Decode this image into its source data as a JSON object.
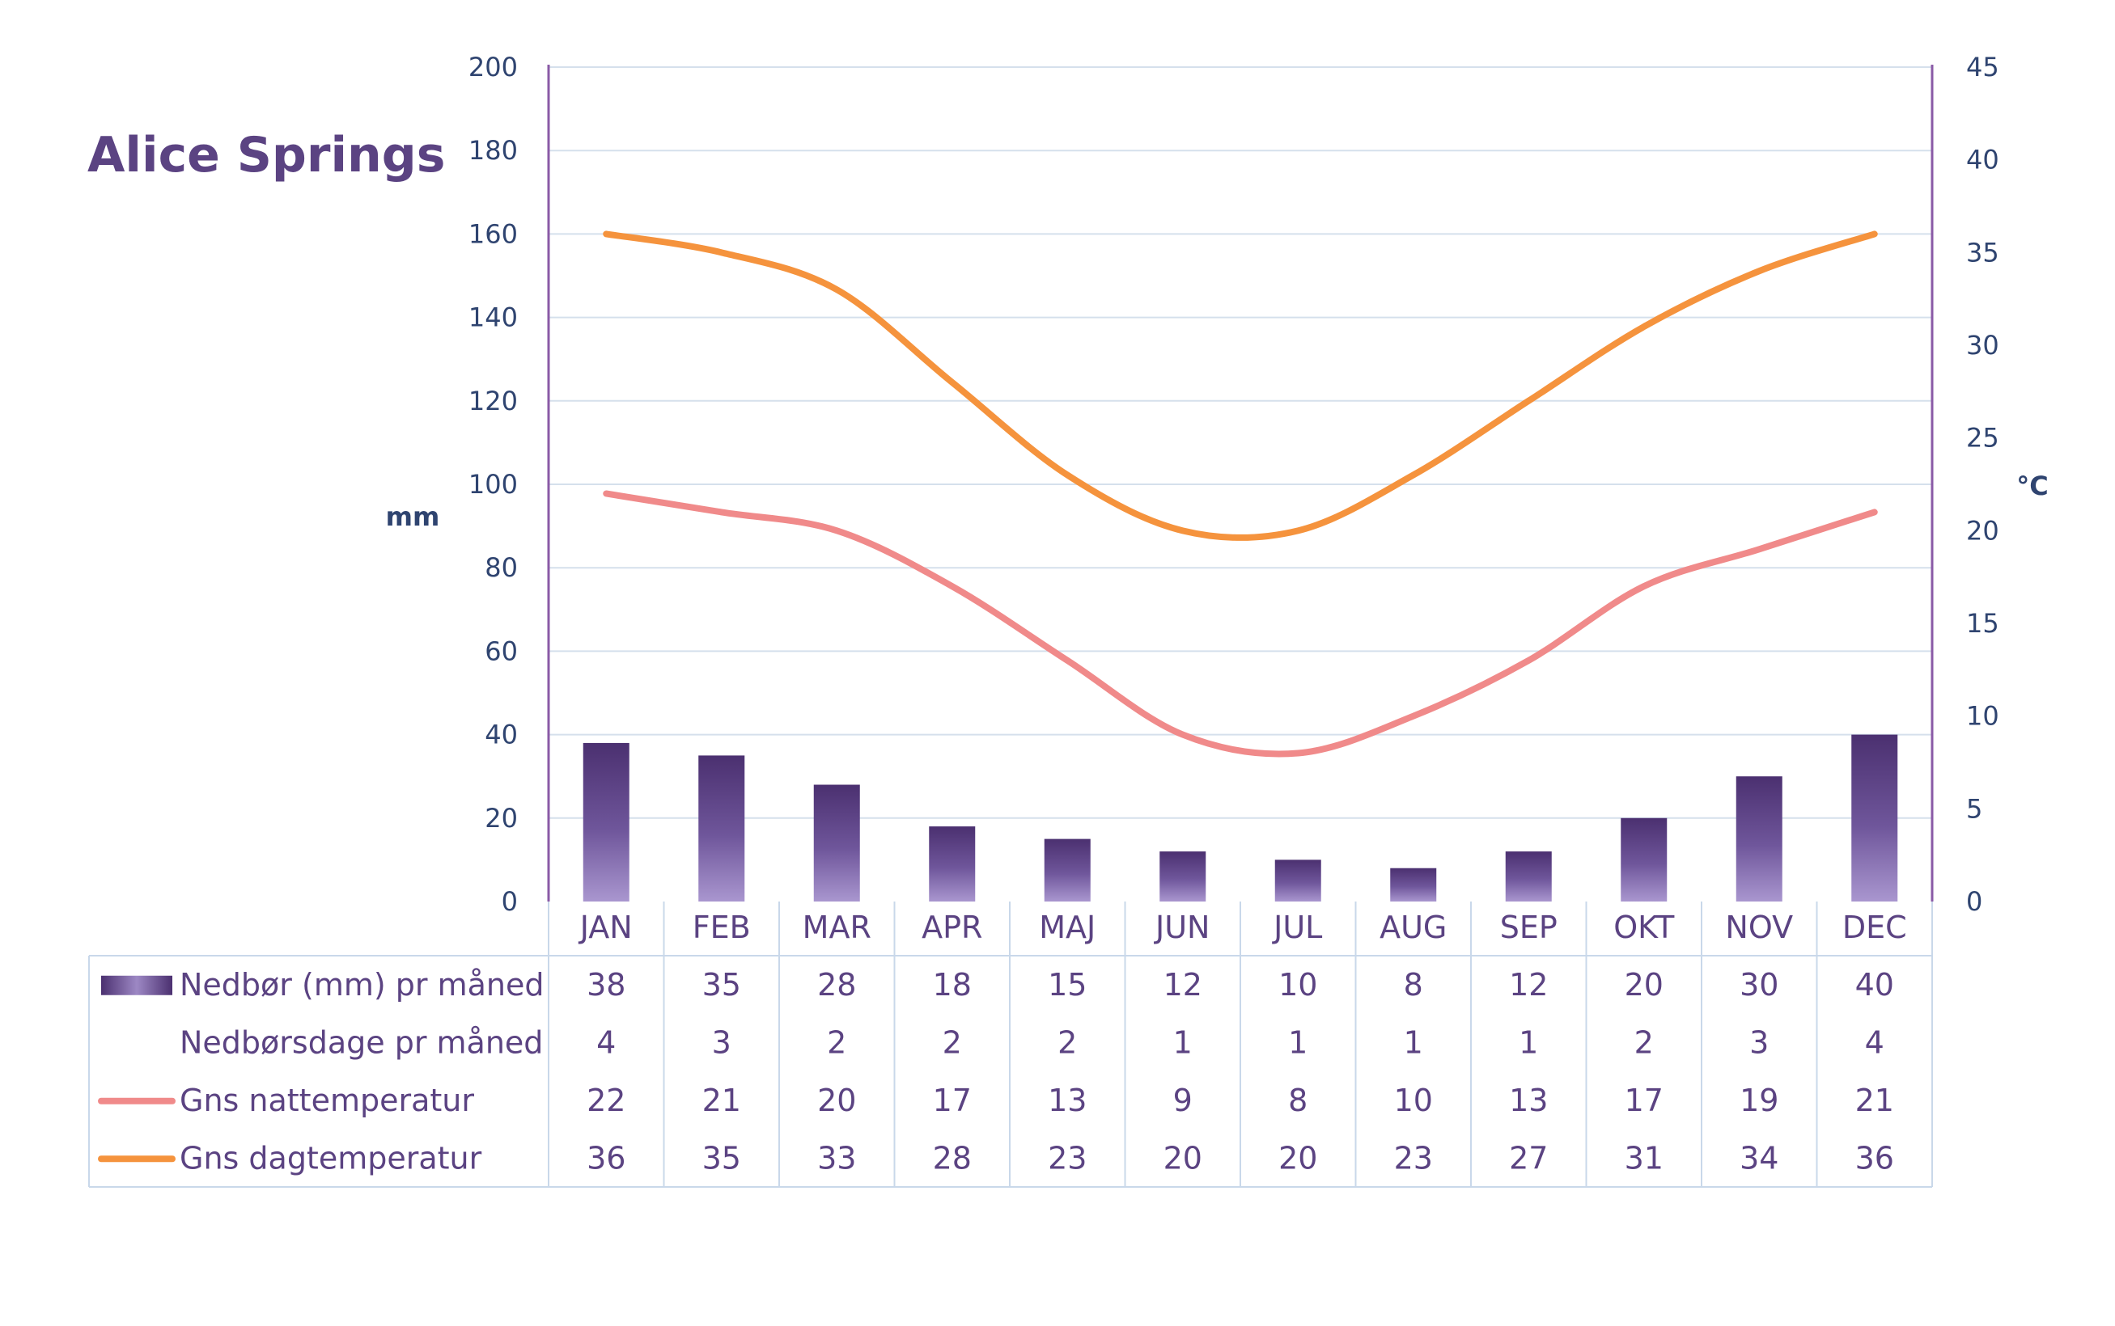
{
  "chart_data": {
    "type": "bar",
    "title": "Alice Springs",
    "categories": [
      "JAN",
      "FEB",
      "MAR",
      "APR",
      "MAJ",
      "JUN",
      "JUL",
      "AUG",
      "SEP",
      "OKT",
      "NOV",
      "DEC"
    ],
    "y_left": {
      "label": "mm",
      "ylim": [
        0,
        200
      ],
      "ticks": [
        "0",
        "20",
        "40",
        "60",
        "80",
        "100",
        "120",
        "140",
        "160",
        "180",
        "200"
      ]
    },
    "y_right": {
      "label": "°C",
      "ylim": [
        0,
        45
      ],
      "ticks": [
        "0",
        "5",
        "10",
        "15",
        "20",
        "25",
        "30",
        "35",
        "40",
        "45"
      ]
    },
    "grid": true,
    "series": [
      {
        "name": "Nedbør (mm) pr måned",
        "type": "bar",
        "axis": "left",
        "color": "#5b4382",
        "values": [
          38,
          35,
          28,
          18,
          15,
          12,
          10,
          8,
          12,
          20,
          30,
          40
        ]
      },
      {
        "name": "Nedbørsdage pr måned",
        "type": "table-only",
        "values": [
          4,
          3,
          2,
          2,
          2,
          1,
          1,
          1,
          1,
          2,
          3,
          4
        ]
      },
      {
        "name": "Gns nattemperatur",
        "type": "line",
        "axis": "right",
        "color": "#f08a8a",
        "values": [
          22,
          21,
          20,
          17,
          13,
          9,
          8,
          10,
          13,
          17,
          19,
          21
        ]
      },
      {
        "name": "Gns dagtemperatur",
        "type": "line",
        "axis": "right",
        "color": "#f5933d",
        "values": [
          36,
          35,
          33,
          28,
          23,
          20,
          20,
          23,
          27,
          31,
          34,
          36
        ]
      }
    ]
  }
}
